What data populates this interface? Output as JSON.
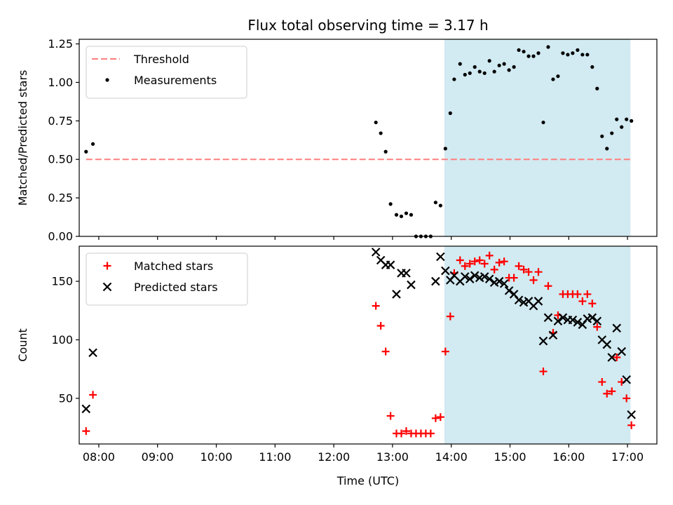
{
  "chart_data": {
    "title": "Flux total observing time = 3.17 h",
    "xlabel": "Time (UTC)",
    "x_ticks": [
      "08:00",
      "09:00",
      "10:00",
      "11:00",
      "12:00",
      "13:00",
      "14:00",
      "15:00",
      "16:00",
      "17:00"
    ],
    "xlim": [
      "07:40",
      "17:30"
    ],
    "highlight_span": [
      "13:53",
      "17:03"
    ],
    "highlight_color": "#add8e6",
    "panels": [
      {
        "type": "scatter",
        "ylabel": "Matched/Predicted stars",
        "ylim": [
          0,
          1.28
        ],
        "y_ticks": [
          "0.00",
          "0.25",
          "0.50",
          "0.75",
          "1.00",
          "1.25"
        ],
        "legend_position": "top-left",
        "threshold": {
          "name": "Threshold",
          "value": 0.5,
          "x_range": [
            "07:47",
            "17:03"
          ],
          "color": "#ff7f7f"
        },
        "series": [
          {
            "name": "Measurements",
            "marker": "dot",
            "color": "#000000",
            "points": [
              [
                "07:47",
                0.55
              ],
              [
                "07:54",
                0.6
              ],
              [
                "12:43",
                0.74
              ],
              [
                "12:48",
                0.67
              ],
              [
                "12:53",
                0.55
              ],
              [
                "12:58",
                0.21
              ],
              [
                "13:04",
                0.14
              ],
              [
                "13:09",
                0.13
              ],
              [
                "13:14",
                0.15
              ],
              [
                "13:19",
                0.14
              ],
              [
                "13:24",
                0.0
              ],
              [
                "13:29",
                0.0
              ],
              [
                "13:34",
                0.0
              ],
              [
                "13:39",
                0.0
              ],
              [
                "13:44",
                0.22
              ],
              [
                "13:49",
                0.2
              ],
              [
                "13:54",
                0.57
              ],
              [
                "13:59",
                0.8
              ],
              [
                "14:03",
                1.02
              ],
              [
                "14:09",
                1.12
              ],
              [
                "14:14",
                1.05
              ],
              [
                "14:19",
                1.06
              ],
              [
                "14:24",
                1.1
              ],
              [
                "14:29",
                1.07
              ],
              [
                "14:34",
                1.06
              ],
              [
                "14:39",
                1.14
              ],
              [
                "14:44",
                1.07
              ],
              [
                "14:49",
                1.11
              ],
              [
                "14:54",
                1.12
              ],
              [
                "14:59",
                1.08
              ],
              [
                "15:04",
                1.1
              ],
              [
                "15:09",
                1.21
              ],
              [
                "15:14",
                1.2
              ],
              [
                "15:19",
                1.17
              ],
              [
                "15:24",
                1.17
              ],
              [
                "15:29",
                1.19
              ],
              [
                "15:34",
                0.74
              ],
              [
                "15:39",
                1.23
              ],
              [
                "15:44",
                1.02
              ],
              [
                "15:49",
                1.04
              ],
              [
                "15:54",
                1.19
              ],
              [
                "15:59",
                1.18
              ],
              [
                "16:04",
                1.19
              ],
              [
                "16:09",
                1.21
              ],
              [
                "16:14",
                1.18
              ],
              [
                "16:19",
                1.18
              ],
              [
                "16:24",
                1.1
              ],
              [
                "16:29",
                0.96
              ],
              [
                "16:34",
                0.65
              ],
              [
                "16:39",
                0.57
              ],
              [
                "16:44",
                0.67
              ],
              [
                "16:49",
                0.76
              ],
              [
                "16:54",
                0.71
              ],
              [
                "16:59",
                0.76
              ],
              [
                "17:04",
                0.75
              ]
            ]
          }
        ]
      },
      {
        "type": "scatter",
        "ylabel": "Count",
        "ylim": [
          11,
          180
        ],
        "y_ticks": [
          "50",
          "100",
          "150"
        ],
        "legend_position": "top-left",
        "series": [
          {
            "name": "Matched stars",
            "marker": "plus",
            "color": "#ff0000",
            "points": [
              [
                "07:47",
                22
              ],
              [
                "07:54",
                53
              ],
              [
                "12:43",
                129
              ],
              [
                "12:48",
                112
              ],
              [
                "12:53",
                90
              ],
              [
                "12:58",
                35
              ],
              [
                "13:04",
                20
              ],
              [
                "13:09",
                20
              ],
              [
                "13:14",
                22
              ],
              [
                "13:19",
                20
              ],
              [
                "13:24",
                20
              ],
              [
                "13:29",
                20
              ],
              [
                "13:34",
                20
              ],
              [
                "13:39",
                20
              ],
              [
                "13:44",
                33
              ],
              [
                "13:49",
                34
              ],
              [
                "13:54",
                90
              ],
              [
                "13:59",
                120
              ],
              [
                "14:03",
                157
              ],
              [
                "14:09",
                168
              ],
              [
                "14:14",
                163
              ],
              [
                "14:19",
                165
              ],
              [
                "14:24",
                167
              ],
              [
                "14:29",
                168
              ],
              [
                "14:34",
                165
              ],
              [
                "14:39",
                172
              ],
              [
                "14:44",
                160
              ],
              [
                "14:49",
                166
              ],
              [
                "14:54",
                167
              ],
              [
                "14:59",
                153
              ],
              [
                "15:04",
                153
              ],
              [
                "15:09",
                163
              ],
              [
                "15:14",
                160
              ],
              [
                "15:19",
                158
              ],
              [
                "15:24",
                151
              ],
              [
                "15:29",
                158
              ],
              [
                "15:34",
                73
              ],
              [
                "15:39",
                146
              ],
              [
                "15:44",
                106
              ],
              [
                "15:49",
                121
              ],
              [
                "15:54",
                139
              ],
              [
                "15:59",
                139
              ],
              [
                "16:04",
                139
              ],
              [
                "16:09",
                139
              ],
              [
                "16:14",
                133
              ],
              [
                "16:19",
                139
              ],
              [
                "16:24",
                131
              ],
              [
                "16:29",
                111
              ],
              [
                "16:34",
                64
              ],
              [
                "16:39",
                54
              ],
              [
                "16:44",
                56
              ],
              [
                "16:49",
                85
              ],
              [
                "16:54",
                64
              ],
              [
                "16:59",
                50
              ],
              [
                "17:04",
                27
              ]
            ]
          },
          {
            "name": "Predicted stars",
            "marker": "x",
            "color": "#000000",
            "points": [
              [
                "07:47",
                41
              ],
              [
                "07:54",
                89
              ],
              [
                "12:43",
                175
              ],
              [
                "12:48",
                168
              ],
              [
                "12:53",
                164
              ],
              [
                "12:58",
                164
              ],
              [
                "13:04",
                139
              ],
              [
                "13:09",
                157
              ],
              [
                "13:14",
                157
              ],
              [
                "13:19",
                147
              ],
              [
                "13:44",
                150
              ],
              [
                "13:49",
                171
              ],
              [
                "13:54",
                159
              ],
              [
                "13:59",
                151
              ],
              [
                "14:03",
                155
              ],
              [
                "14:09",
                150
              ],
              [
                "14:14",
                154
              ],
              [
                "14:19",
                152
              ],
              [
                "14:24",
                155
              ],
              [
                "14:29",
                153
              ],
              [
                "14:34",
                154
              ],
              [
                "14:39",
                152
              ],
              [
                "14:44",
                149
              ],
              [
                "14:49",
                150
              ],
              [
                "14:54",
                148
              ],
              [
                "14:59",
                142
              ],
              [
                "15:04",
                139
              ],
              [
                "15:09",
                134
              ],
              [
                "15:14",
                132
              ],
              [
                "15:19",
                133
              ],
              [
                "15:24",
                129
              ],
              [
                "15:29",
                133
              ],
              [
                "15:34",
                99
              ],
              [
                "15:39",
                119
              ],
              [
                "15:44",
                104
              ],
              [
                "15:49",
                116
              ],
              [
                "15:54",
                119
              ],
              [
                "15:59",
                117
              ],
              [
                "16:04",
                117
              ],
              [
                "16:09",
                115
              ],
              [
                "16:14",
                113
              ],
              [
                "16:19",
                118
              ],
              [
                "16:24",
                119
              ],
              [
                "16:29",
                116
              ],
              [
                "16:34",
                100
              ],
              [
                "16:39",
                96
              ],
              [
                "16:44",
                85
              ],
              [
                "16:49",
                110
              ],
              [
                "16:54",
                90
              ],
              [
                "16:59",
                66
              ],
              [
                "17:04",
                36
              ]
            ]
          }
        ]
      }
    ]
  }
}
